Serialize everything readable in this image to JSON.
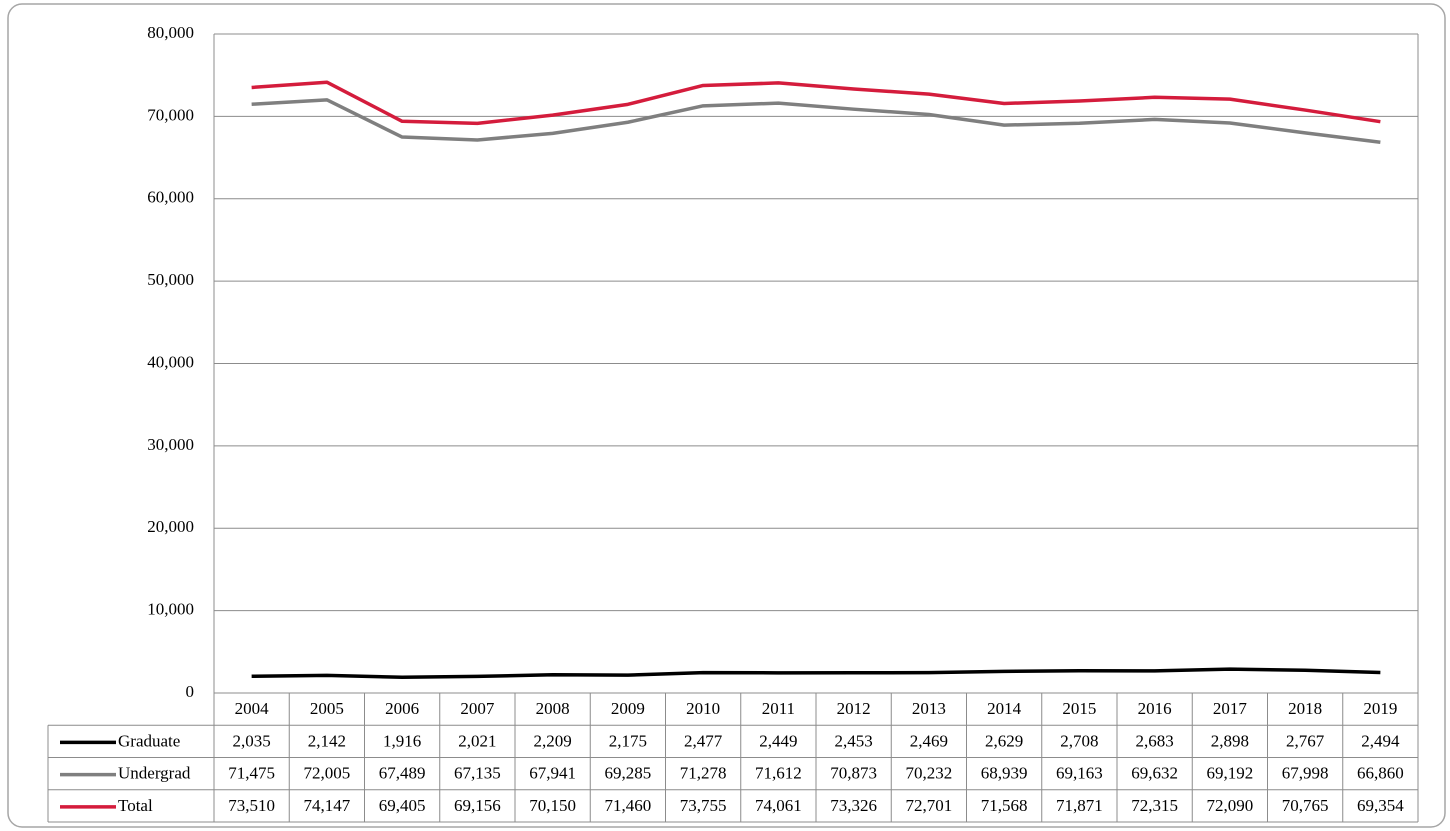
{
  "chart_data": {
    "type": "line",
    "categories": [
      "2004",
      "2005",
      "2006",
      "2007",
      "2008",
      "2009",
      "2010",
      "2011",
      "2012",
      "2013",
      "2014",
      "2015",
      "2016",
      "2017",
      "2018",
      "2019"
    ],
    "series": [
      {
        "name": "Graduate",
        "color": "#000000",
        "values": [
          2035,
          2142,
          1916,
          2021,
          2209,
          2175,
          2477,
          2449,
          2453,
          2469,
          2629,
          2708,
          2683,
          2898,
          2767,
          2494
        ],
        "value_labels": [
          "2,035",
          "2,142",
          "1,916",
          "2,021",
          "2,209",
          "2,175",
          "2,477",
          "2,449",
          "2,453",
          "2,469",
          "2,629",
          "2,708",
          "2,683",
          "2,898",
          "2,767",
          "2,494"
        ]
      },
      {
        "name": "Undergrad",
        "color": "#7f7f7f",
        "values": [
          71475,
          72005,
          67489,
          67135,
          67941,
          69285,
          71278,
          71612,
          70873,
          70232,
          68939,
          69163,
          69632,
          69192,
          67998,
          66860
        ],
        "value_labels": [
          "71,475",
          "72,005",
          "67,489",
          "67,135",
          "67,941",
          "69,285",
          "71,278",
          "71,612",
          "70,873",
          "70,232",
          "68,939",
          "69,163",
          "69,632",
          "69,192",
          "67,998",
          "66,860"
        ]
      },
      {
        "name": "Total",
        "color": "#d41c3c",
        "values": [
          73510,
          74147,
          69405,
          69156,
          70150,
          71460,
          73755,
          74061,
          73326,
          72701,
          71568,
          71871,
          72315,
          72090,
          70765,
          69354
        ],
        "value_labels": [
          "73,510",
          "74,147",
          "69,405",
          "69,156",
          "70,150",
          "71,460",
          "73,755",
          "74,061",
          "73,326",
          "72,701",
          "71,568",
          "71,871",
          "72,315",
          "72,090",
          "70,765",
          "69,354"
        ]
      }
    ],
    "ylim": [
      0,
      80000
    ],
    "yticks": [
      0,
      {
        "value": 10000,
        "label": "10,000"
      },
      {
        "value": 20000,
        "label": "20,000"
      },
      {
        "value": 30000,
        "label": "30,000"
      },
      {
        "value": 40000,
        "label": "40,000"
      },
      {
        "value": 50000,
        "label": "50,000"
      },
      {
        "value": 60000,
        "label": "60,000"
      },
      {
        "value": 70000,
        "label": "70,000"
      },
      {
        "value": 80000,
        "label": "80,000"
      }
    ],
    "grid": true
  }
}
